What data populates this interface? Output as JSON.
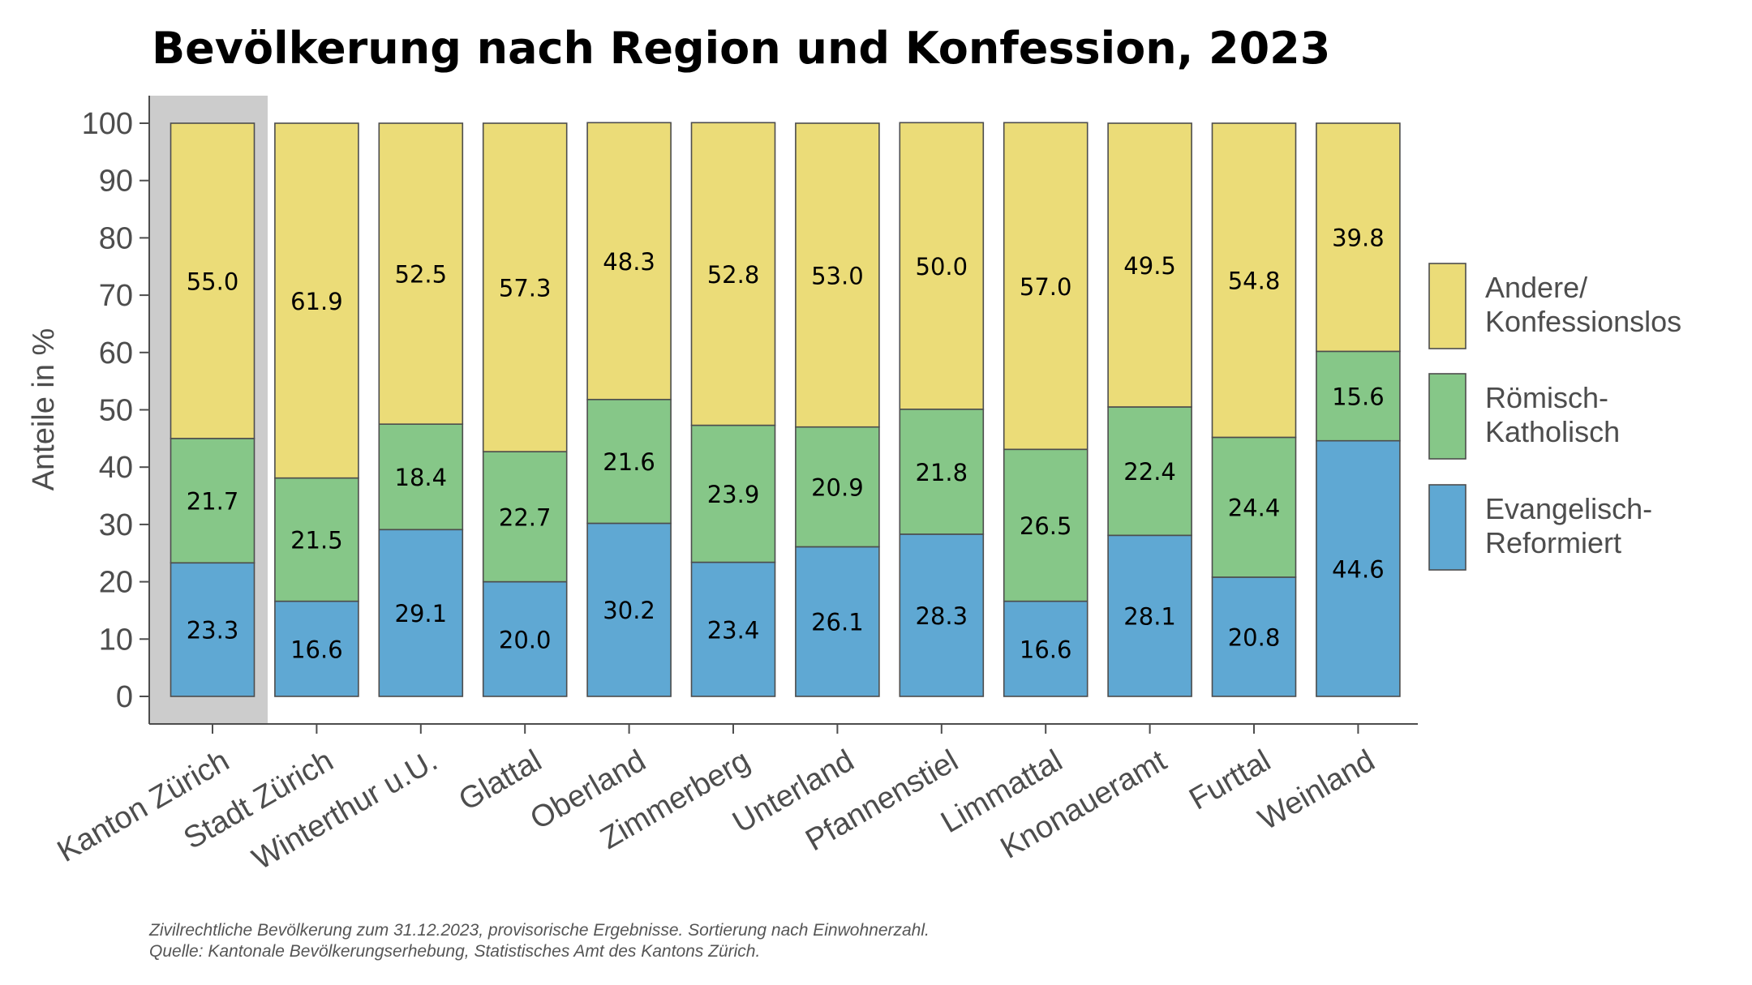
{
  "chart_data": {
    "type": "bar",
    "stacked": true,
    "title": "Bevölkerung nach Region und Konfession, 2023",
    "xlabel": "",
    "ylabel": "Anteile in %",
    "ylim": [
      0,
      100
    ],
    "yticks": [
      "0",
      "10",
      "20",
      "30",
      "40",
      "50",
      "60",
      "70",
      "80",
      "90",
      "100"
    ],
    "highlighted_category": "Kanton Zürich",
    "categories": [
      "Kanton Zürich",
      "Stadt Zürich",
      "Winterthur u.U.",
      "Glattal",
      "Oberland",
      "Zimmerberg",
      "Unterland",
      "Pfannenstiel",
      "Limmattal",
      "Knonaueramt",
      "Furttal",
      "Weinland"
    ],
    "series": [
      {
        "name": "Evangelisch-Reformiert",
        "legend_lines": [
          "Evangelisch-",
          "Reformiert"
        ],
        "color": "#5FA8D3",
        "values": [
          23.3,
          16.6,
          29.1,
          20.0,
          30.2,
          23.4,
          26.1,
          28.3,
          16.6,
          28.1,
          20.8,
          44.6
        ],
        "labels": [
          "23.3",
          "16.6",
          "29.1",
          "20.0",
          "30.2",
          "23.4",
          "26.1",
          "28.3",
          "16.6",
          "28.1",
          "20.8",
          "44.6"
        ]
      },
      {
        "name": "Römisch-Katholisch",
        "legend_lines": [
          "Römisch-",
          "Katholisch"
        ],
        "color": "#86C788",
        "values": [
          21.7,
          21.5,
          18.4,
          22.7,
          21.6,
          23.9,
          20.9,
          21.8,
          26.5,
          22.4,
          24.4,
          15.6
        ],
        "labels": [
          "21.7",
          "21.5",
          "18.4",
          "22.7",
          "21.6",
          "23.9",
          "20.9",
          "21.8",
          "26.5",
          "22.4",
          "24.4",
          "15.6"
        ]
      },
      {
        "name": "Andere/Konfessionslos",
        "legend_lines": [
          "Andere/",
          "Konfessionslos"
        ],
        "color": "#EBDC78",
        "values": [
          55.0,
          61.9,
          52.5,
          57.3,
          48.3,
          52.8,
          53.0,
          50.0,
          57.0,
          49.5,
          54.8,
          39.8
        ],
        "labels": [
          "55.0",
          "61.9",
          "52.5",
          "57.3",
          "48.3",
          "52.8",
          "53.0",
          "50.0",
          "57.0",
          "49.5",
          "54.8",
          "39.8"
        ]
      }
    ],
    "legend_position": "right",
    "grid": false
  },
  "footnote": {
    "line1": "Zivilrechtliche Bevölkerung zum 31.12.2023, provisorische Ergebnisse. Sortierung nach Einwohnerzahl.",
    "line2": "Quelle: Kantonale Bevölkerungserhebung, Statistisches Amt des Kantons Zürich."
  }
}
